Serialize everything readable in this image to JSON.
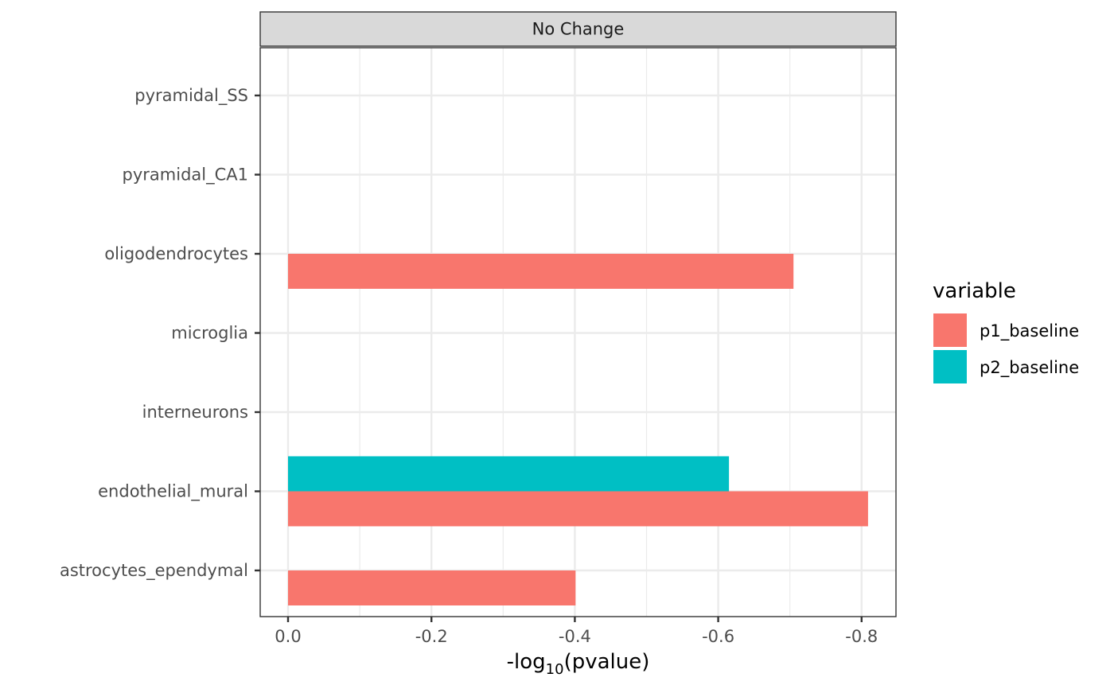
{
  "chart_data": {
    "type": "bar",
    "orientation": "horizontal",
    "facet_label": "No Change",
    "categories": [
      "astrocytes_ependymal",
      "endothelial_mural",
      "interneurons",
      "microglia",
      "oligodendrocytes",
      "pyramidal_CA1",
      "pyramidal_SS"
    ],
    "series": [
      {
        "name": "p1_baseline",
        "color": "#F8766D",
        "values": [
          -0.401,
          -0.809,
          null,
          null,
          -0.705,
          null,
          null
        ]
      },
      {
        "name": "p2_baseline",
        "color": "#00BFC4",
        "values": [
          null,
          -0.615,
          null,
          null,
          null,
          null,
          null
        ]
      }
    ],
    "xlabel_main": "-log",
    "xlabel_sub": "10",
    "xlabel_rest": "(pvalue)",
    "xlim": [
      0.04,
      -0.85
    ],
    "xticks": [
      0.0,
      -0.2,
      -0.4,
      -0.6,
      -0.8
    ],
    "xtick_labels": [
      "0.0",
      "-0.2",
      "-0.4",
      "-0.6",
      "-0.8"
    ],
    "grid": true,
    "legend": {
      "title": "variable",
      "position": "right",
      "items": [
        "p1_baseline",
        "p2_baseline"
      ]
    }
  }
}
